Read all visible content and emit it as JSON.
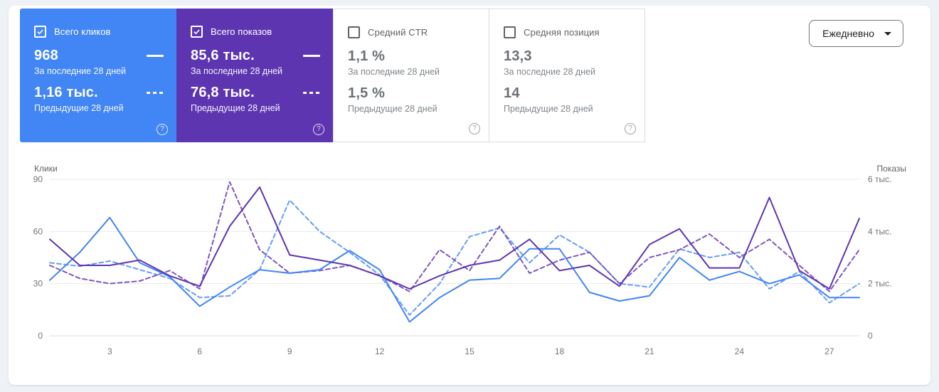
{
  "metrics": {
    "cards": [
      {
        "label": "Всего кликов",
        "value1": "968",
        "period1": "За последние 28 дней",
        "value2": "1,16 тыс.",
        "period2": "Предыдущие 28 дней",
        "checked": true,
        "bg": "#4285f4"
      },
      {
        "label": "Всего показов",
        "value1": "85,6 тыс.",
        "period1": "За последние 28 дней",
        "value2": "76,8 тыс.",
        "period2": "Предыдущие 28 дней",
        "checked": true,
        "bg": "#5e35b1"
      },
      {
        "label": "Средний CTR",
        "value1": "1,1 %",
        "period1": "За последние 28 дней",
        "value2": "1,5 %",
        "period2": "Предыдущие 28 дней",
        "checked": false
      },
      {
        "label": "Средняя позиция",
        "value1": "13,3",
        "period1": "За последние 28 дней",
        "value2": "14",
        "period2": "Предыдущие 28 дней",
        "checked": false
      }
    ],
    "help_icon": "?"
  },
  "controls": {
    "granularity": "Ежедневно"
  },
  "chart_data": {
    "type": "line",
    "x_days": [
      1,
      2,
      3,
      4,
      5,
      6,
      7,
      8,
      9,
      10,
      11,
      12,
      13,
      14,
      15,
      16,
      17,
      18,
      19,
      20,
      21,
      22,
      23,
      24,
      25,
      26,
      27,
      28
    ],
    "x_ticks": [
      3,
      6,
      9,
      12,
      15,
      18,
      21,
      24,
      27
    ],
    "left_axis": {
      "label": "Клики",
      "ticks": [
        0,
        30,
        60,
        90
      ],
      "max": 90
    },
    "right_axis": {
      "label": "Показы",
      "ticks": [
        "0",
        "2 тыс.",
        "4 тыс.",
        "6 тыс."
      ],
      "tick_values": [
        0,
        2,
        4,
        6
      ],
      "max": 6
    },
    "grid": "horizontal",
    "series": [
      {
        "name": "Клики — последние 28 дней",
        "axis": "left",
        "style": "solid",
        "color": "#4285f4",
        "values": [
          32,
          48,
          68,
          42,
          34,
          17,
          28,
          38,
          36,
          38,
          49,
          38,
          8,
          22,
          32,
          33,
          50,
          50,
          25,
          20,
          23,
          45,
          32,
          37,
          30,
          35,
          22,
          22
        ]
      },
      {
        "name": "Клики — предыдущие 28 дней",
        "axis": "left",
        "style": "dashed",
        "color": "#669df6",
        "values": [
          42,
          40,
          43,
          38,
          33,
          22,
          23,
          38,
          78,
          60,
          48,
          35,
          12,
          30,
          57,
          62,
          42,
          58,
          48,
          30,
          28,
          50,
          45,
          48,
          27,
          37,
          19,
          30
        ]
      },
      {
        "name": "Показы (тыс.) — последние 28 дней",
        "axis": "right",
        "style": "solid",
        "color": "#5e35b1",
        "values": [
          3.7,
          2.7,
          2.7,
          2.9,
          2.3,
          1.9,
          4.2,
          5.7,
          3.1,
          2.9,
          2.7,
          2.3,
          1.8,
          2.3,
          2.7,
          2.9,
          3.7,
          2.5,
          2.7,
          1.9,
          3.5,
          4.1,
          2.6,
          2.6,
          5.3,
          2.5,
          1.8,
          4.5
        ]
      },
      {
        "name": "Показы (тыс.) — предыдущие 28 дней",
        "axis": "right",
        "style": "dashed",
        "color": "#7e57c2",
        "values": [
          2.7,
          2.2,
          2.0,
          2.1,
          2.5,
          1.8,
          5.9,
          3.3,
          2.4,
          2.5,
          2.7,
          2.3,
          1.7,
          3.3,
          2.5,
          4.2,
          2.4,
          2.9,
          3.2,
          2.0,
          3.0,
          3.3,
          3.9,
          3.0,
          3.7,
          2.7,
          1.7,
          3.3
        ]
      }
    ]
  }
}
